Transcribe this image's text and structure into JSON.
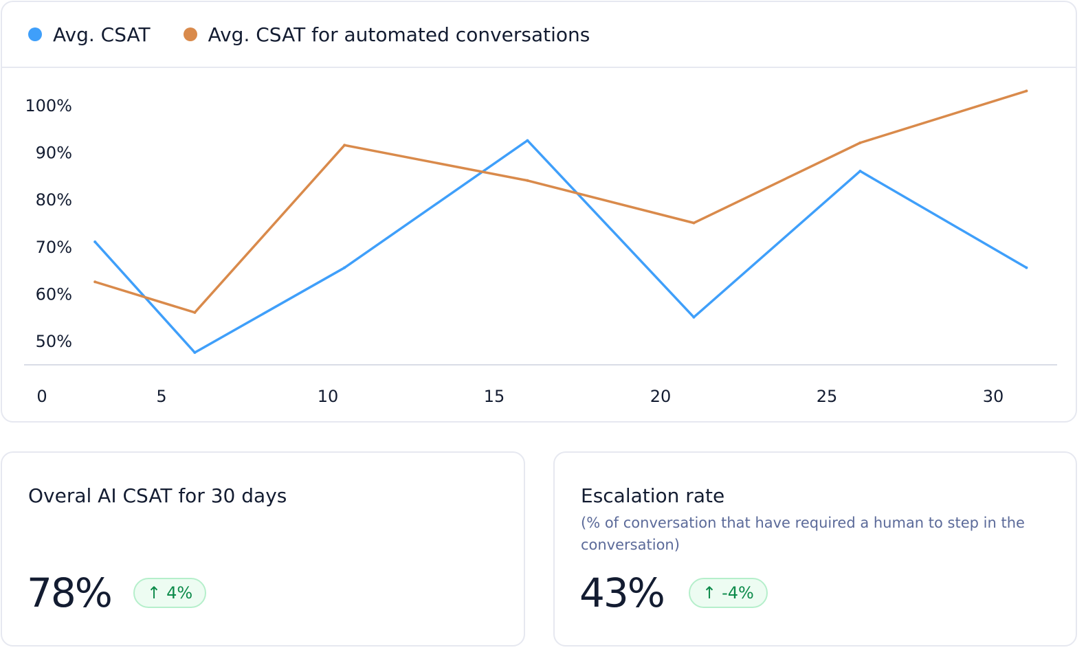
{
  "chart_data": {
    "type": "line",
    "legend": "top-left",
    "series": [
      {
        "name": "Avg. CSAT",
        "color": "#3f9ffa",
        "points": [
          [
            3,
            71
          ],
          [
            6,
            47.5
          ],
          [
            10.5,
            65.5
          ],
          [
            16,
            92.5
          ],
          [
            21,
            55
          ],
          [
            26,
            86
          ],
          [
            31,
            65.5
          ]
        ]
      },
      {
        "name": "Avg. CSAT for automated conversations",
        "color": "#d98a4b",
        "points": [
          [
            3,
            62.5
          ],
          [
            6,
            56
          ],
          [
            10.5,
            91.5
          ],
          [
            16,
            84
          ],
          [
            21,
            75
          ],
          [
            26,
            92
          ],
          [
            31,
            103
          ]
        ]
      }
    ],
    "x_ticks": [
      "0",
      "5",
      "10",
      "15",
      "20",
      "25",
      "30"
    ],
    "y_ticks": [
      "100%",
      "90%",
      "80%",
      "70%",
      "60%",
      "50%"
    ],
    "y_tick_values": [
      100,
      90,
      80,
      70,
      60,
      50
    ],
    "x_tick_values": [
      0,
      5,
      10,
      15,
      20,
      25,
      30
    ],
    "ylim": [
      45,
      105
    ],
    "grid": false
  },
  "cards": {
    "csat": {
      "title": "Overal AI CSAT for 30 days",
      "value": "78%",
      "change": "4%",
      "change_icon": "arrow-up-icon"
    },
    "escalation": {
      "title": "Escalation rate",
      "subtitle": "(% of conversation that have required a human to step in the conversation)",
      "value": "43%",
      "change": "-4%",
      "change_icon": "arrow-up-icon"
    }
  }
}
